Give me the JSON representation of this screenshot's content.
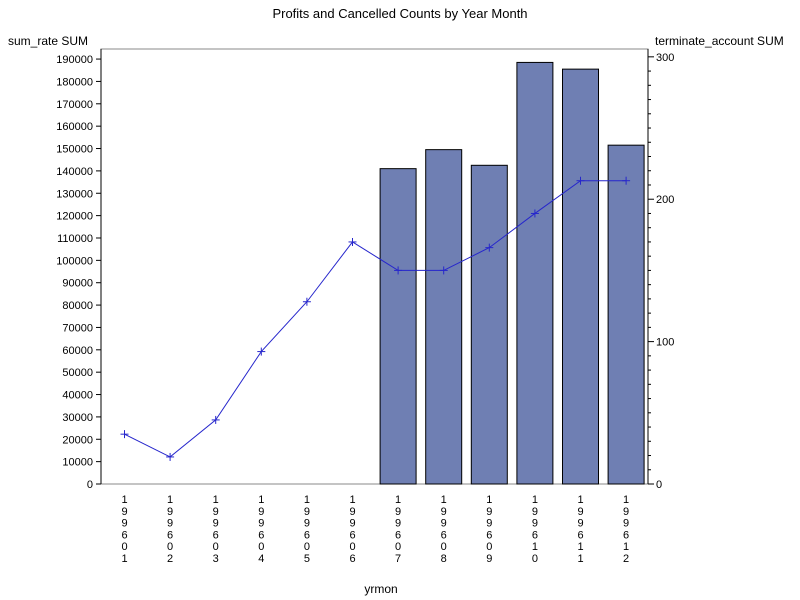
{
  "chart_data": {
    "type": "bar+line",
    "title": "Profits and Cancelled Counts by Year Month",
    "xlabel": "yrmon",
    "ylabel_left": "sum_rate SUM",
    "ylabel_right": "terminate_account SUM",
    "categories": [
      "199601",
      "199602",
      "199603",
      "199604",
      "199605",
      "199606",
      "199607",
      "199608",
      "199609",
      "199610",
      "199611",
      "199612"
    ],
    "series": [
      {
        "kind": "bar",
        "axis": "left",
        "values": [
          0,
          0,
          0,
          0,
          0,
          0,
          141000,
          149500,
          142500,
          188500,
          185500,
          151500
        ],
        "color": "#6f7fb3"
      },
      {
        "kind": "line",
        "axis": "right",
        "marker": "plus",
        "values": [
          35,
          19,
          45,
          93,
          128,
          170,
          150,
          150,
          166,
          190,
          213,
          213
        ],
        "color": "#2626cc"
      }
    ],
    "ylim_left": [
      0,
      190000
    ],
    "yticks_left": [
      "0",
      "10000",
      "20000",
      "30000",
      "40000",
      "50000",
      "60000",
      "70000",
      "80000",
      "90000",
      "100000",
      "110000",
      "120000",
      "130000",
      "140000",
      "150000",
      "160000",
      "170000",
      "180000",
      "190000"
    ],
    "ylim_right": [
      0,
      300
    ],
    "yticks_right": [
      "0",
      "100",
      "200",
      "300"
    ],
    "grid": false,
    "legend": "none"
  }
}
